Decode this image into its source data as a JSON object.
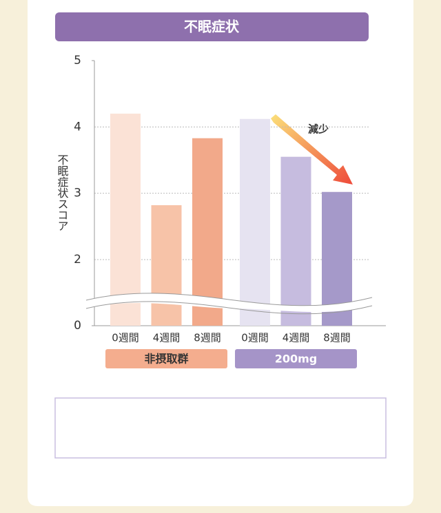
{
  "chart_data": {
    "type": "bar",
    "title": "不眠症状",
    "y_label": "不眠症状スコア",
    "annotation": "減少",
    "categories": [
      "0週間",
      "4週間",
      "8週間"
    ],
    "series": [
      {
        "name": "非摂取群",
        "color": "#f4ad8e",
        "bar_colors": [
          "#fbe2d6",
          "#f7c3a8",
          "#f2a98a"
        ],
        "values": [
          4.2,
          2.82,
          3.83
        ]
      },
      {
        "name": "200mg",
        "color": "#a594c8",
        "bar_colors": [
          "#e6e3f1",
          "#c6bcdf",
          "#a599c9"
        ],
        "values": [
          4.12,
          3.55,
          3.02
        ]
      }
    ],
    "ylim": [
      0,
      5
    ],
    "yticks": [
      0,
      2,
      3,
      4,
      5
    ],
    "axis_break": [
      0,
      2
    ],
    "grid": true
  }
}
